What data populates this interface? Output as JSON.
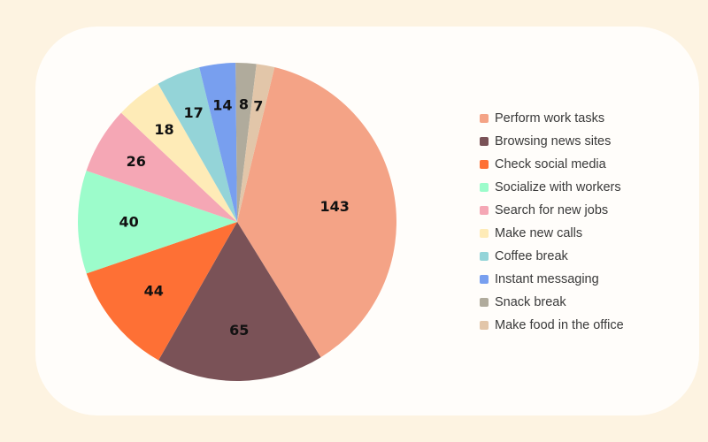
{
  "colors": {
    "page_background": "#fdf3e1",
    "card_background": "#fffdfa",
    "label_text": "#111111",
    "legend_text": "#3a3a3a"
  },
  "chart_data": {
    "type": "pie",
    "title": "",
    "legend_position": "right",
    "slices": [
      {
        "label": "Perform work tasks",
        "value": 143,
        "color": "#f4a386"
      },
      {
        "label": "Browsing news sites",
        "value": 65,
        "color": "#7a5257"
      },
      {
        "label": "Check social media",
        "value": 44,
        "color": "#fe7035"
      },
      {
        "label": "Socialize with workers",
        "value": 40,
        "color": "#9cfccb"
      },
      {
        "label": "Search for new jobs",
        "value": 26,
        "color": "#f5a7b5"
      },
      {
        "label": "Make new calls",
        "value": 18,
        "color": "#feebb7"
      },
      {
        "label": "Coffee break",
        "value": 17,
        "color": "#94d4d8"
      },
      {
        "label": "Instant messaging",
        "value": 14,
        "color": "#789fef"
      },
      {
        "label": "Snack break",
        "value": 8,
        "color": "#b0ab9c"
      },
      {
        "label": "Make food in the office",
        "value": 7,
        "color": "#e2c6a9"
      }
    ]
  }
}
